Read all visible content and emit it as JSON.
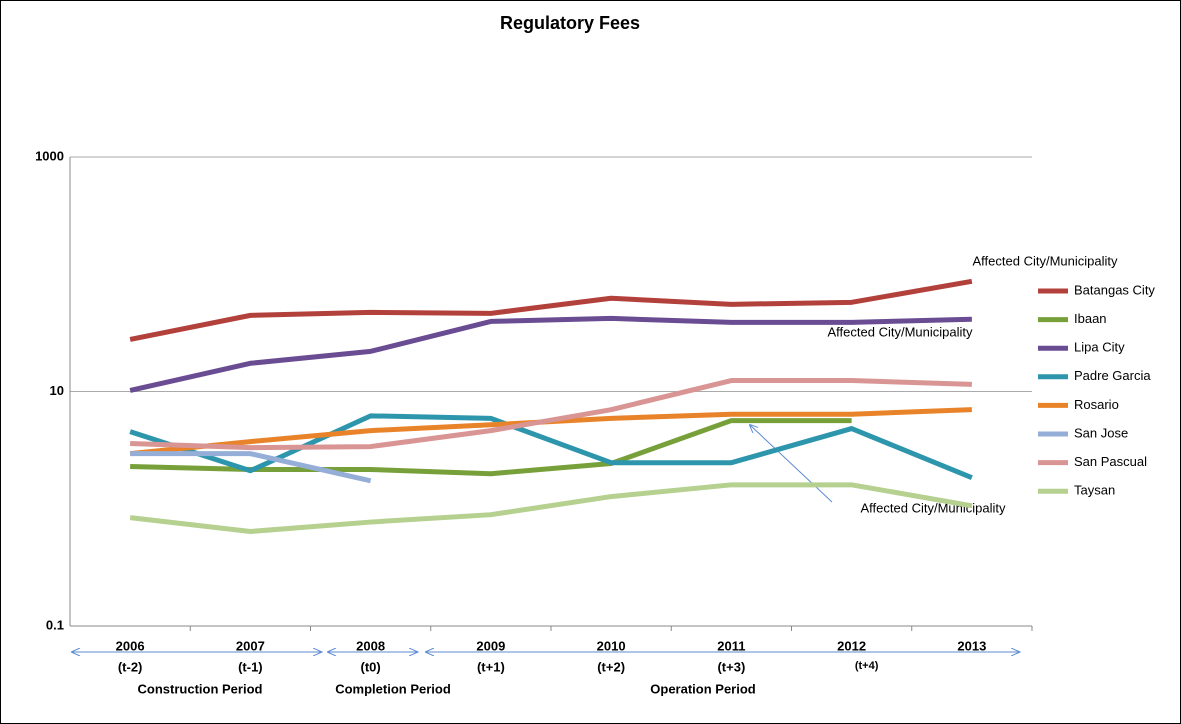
{
  "chart_data": {
    "type": "line",
    "title": "Regulatory Fees",
    "categories": [
      "2006",
      "2007",
      "2008",
      "2009",
      "2010",
      "2011",
      "2012",
      "2013"
    ],
    "category_sublabels": [
      "(t-2)",
      "(t-1)",
      "(t0)",
      "(t+1)",
      "(t+2)",
      "(t+3)",
      "(t+4)",
      null
    ],
    "periods": [
      "Construction Period",
      "Completion Period",
      "Operation Period"
    ],
    "annotations": [
      "Affected City/Municipality",
      "Affected City/Municipality",
      "Affected City/Municipality"
    ],
    "log_scale": true,
    "grid": true,
    "legend": "right",
    "ylim": [
      0.1,
      1000
    ],
    "yticks": [
      0.1,
      10,
      1000
    ],
    "series": [
      {
        "name": "Batangas City",
        "color": "#b3413b",
        "values": [
          27.8,
          44.6,
          47.3,
          46.4,
          62.4,
          55.4,
          57.6,
          87
        ]
      },
      {
        "name": "Ibaan",
        "color": "#77a03a",
        "values": [
          2.29,
          2.16,
          2.16,
          1.99,
          2.43,
          5.65,
          5.65,
          null
        ]
      },
      {
        "name": "Lipa City",
        "color": "#6a4c93",
        "values": [
          10.2,
          17.4,
          22,
          39.6,
          42,
          38.9,
          38.9,
          41.3
        ]
      },
      {
        "name": "Padre Garcia",
        "color": "#2e96ac",
        "values": [
          4.55,
          2.11,
          6.2,
          5.9,
          2.47,
          2.47,
          4.83,
          1.84
        ]
      },
      {
        "name": "Rosario",
        "color": "#e8832a",
        "values": [
          2.95,
          3.74,
          4.64,
          5.2,
          5.9,
          6.4,
          6.4,
          7.0
        ]
      },
      {
        "name": "San Jose",
        "color": "#95aed8",
        "values": [
          2.95,
          2.95,
          1.73,
          null,
          null,
          null,
          null,
          null
        ]
      },
      {
        "name": "San Pascual",
        "color": "#d99594",
        "values": [
          3.6,
          3.32,
          3.39,
          4.64,
          7.0,
          12.4,
          12.4,
          11.5
        ]
      },
      {
        "name": "Taysan",
        "color": "#b5d08f",
        "values": [
          0.84,
          0.64,
          0.77,
          0.89,
          1.27,
          1.6,
          1.6,
          1.06
        ]
      }
    ]
  }
}
